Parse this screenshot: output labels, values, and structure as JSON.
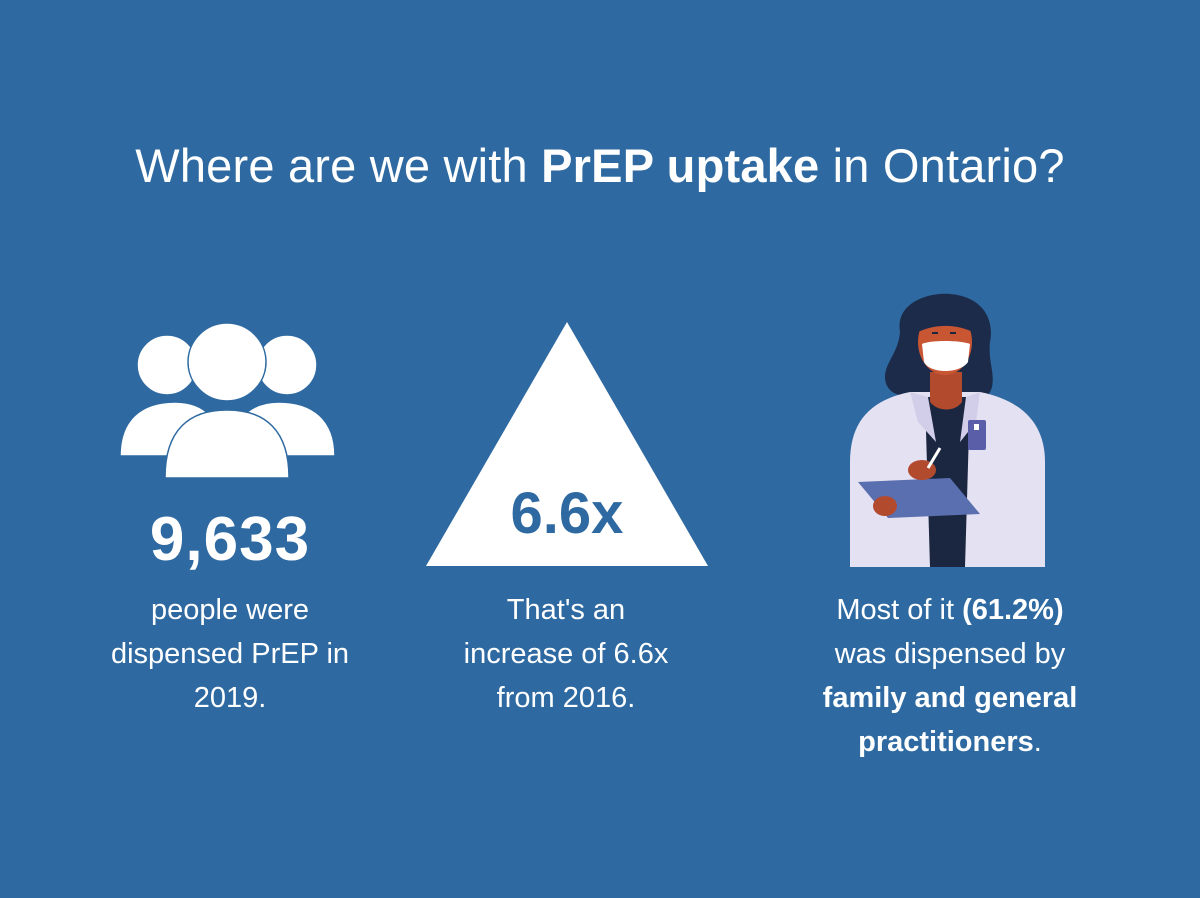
{
  "title": {
    "prefix": "Where are we with ",
    "bold": "PrEP uptake",
    "suffix": " in Ontario?"
  },
  "stat1": {
    "number": "9,633",
    "line1": "people were",
    "line2": "dispensed PrEP in",
    "line3": "2019.",
    "icon": "people-group-icon"
  },
  "stat2": {
    "badge": "6.6x",
    "line1": "That's an",
    "line2": "increase of 6.6x",
    "line3": "from 2016.",
    "icon": "triangle-up-icon"
  },
  "stat3": {
    "line1_pre": "Most of it ",
    "line1_bold": "(61.2%)",
    "line2": "was dispensed by",
    "line3_bold": "family and general",
    "line4_bold": "practitioners",
    "line4_post": ".",
    "icon": "doctor-illustration"
  },
  "colors": {
    "background": "#2e6aa1",
    "text": "#ffffff"
  }
}
